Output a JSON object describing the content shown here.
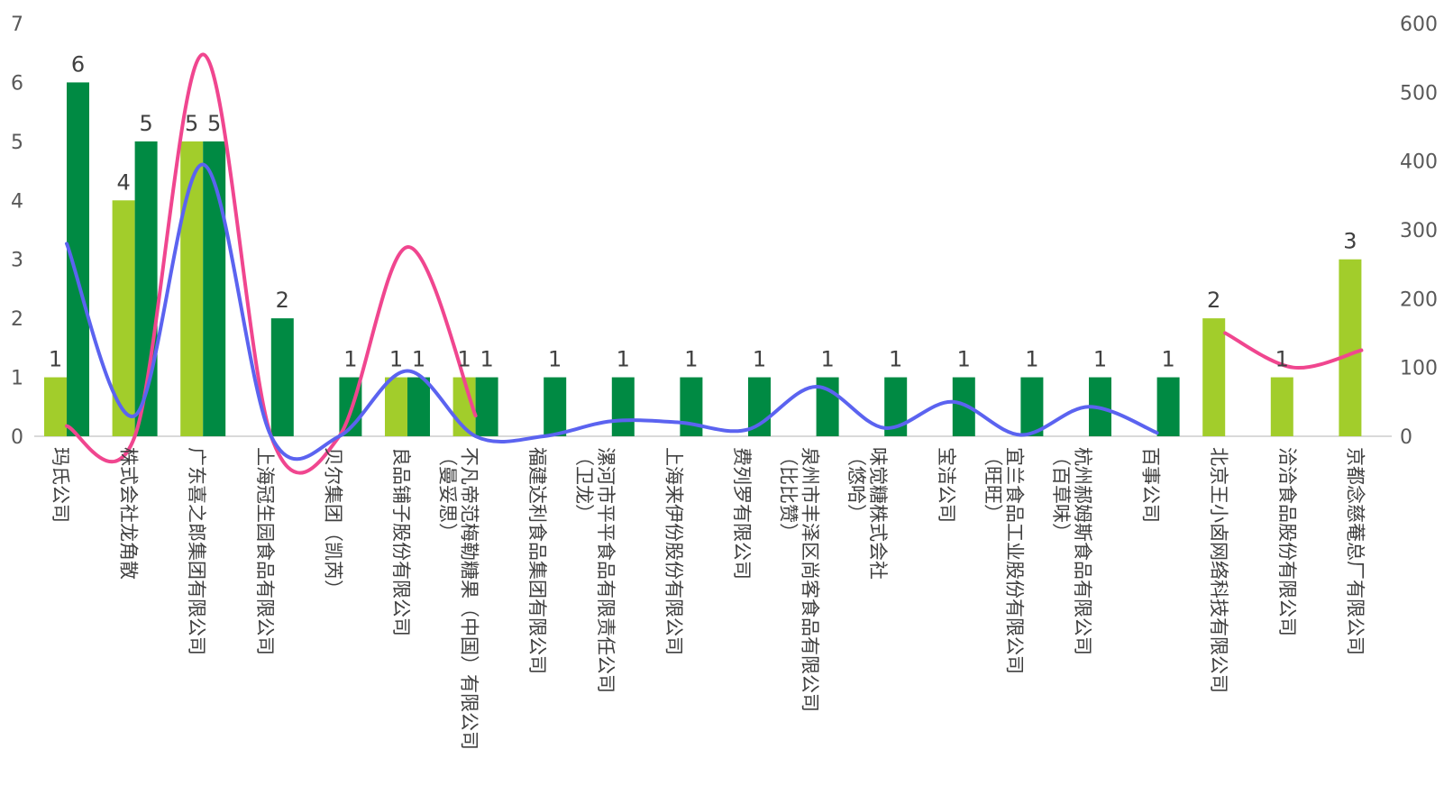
{
  "chart_data": {
    "type": "bar",
    "title": "",
    "xlabel": "",
    "ylabel": "",
    "ylim": [
      0,
      7
    ],
    "y2lim": [
      0,
      600
    ],
    "yticks": [
      "0",
      "1",
      "2",
      "3",
      "4",
      "5",
      "6",
      "7"
    ],
    "y2ticks": [
      "0",
      "100",
      "200",
      "300",
      "400",
      "500",
      "600"
    ],
    "grid": false,
    "legend": "none",
    "categories": [
      [
        "玛氏公司"
      ],
      [
        "株式会社龙角散"
      ],
      [
        "广东喜之郎集团有限公司"
      ],
      [
        "上海冠生园食品有限公司"
      ],
      [
        "贝尔集团（凯芮）"
      ],
      [
        "良品铺子股份有限公司"
      ],
      [
        "不凡帝范梅勒糖果（中国）有限公司",
        "（曼妥思）"
      ],
      [
        "福建达利食品集团有限公司"
      ],
      [
        "漯河市平平食品有限责任公司",
        "（卫龙）"
      ],
      [
        "上海来伊份股份有限公司"
      ],
      [
        "费列罗有限公司"
      ],
      [
        "泉州市丰泽区尚客食品有限公司",
        "（比比赞）"
      ],
      [
        "味觉糖株式会社",
        "（悠哈）"
      ],
      [
        "宝洁公司"
      ],
      [
        "宜兰食品工业股份有限公司",
        "（旺旺）"
      ],
      [
        "杭州郝姆斯食品有限公司",
        "（百草味）"
      ],
      [
        "百事公司"
      ],
      [
        "北京王小卤网络科技有限公司"
      ],
      [
        "洽洽食品股份有限公司"
      ],
      [
        "京都念慈菴总厂有限公司"
      ]
    ],
    "series": [
      {
        "kind": "bar",
        "axis": "left",
        "color": "#a2cd2b",
        "values": [
          1,
          4,
          5,
          null,
          null,
          1,
          1,
          null,
          null,
          null,
          null,
          null,
          null,
          null,
          null,
          null,
          null,
          2,
          1,
          3
        ]
      },
      {
        "kind": "bar",
        "axis": "left",
        "color": "#008a43",
        "values": [
          6,
          5,
          5,
          2,
          1,
          1,
          1,
          1,
          1,
          1,
          1,
          1,
          1,
          1,
          1,
          1,
          1,
          null,
          null,
          null
        ]
      },
      {
        "kind": "line",
        "axis": "right",
        "color": "#f0468f",
        "values": [
          15,
          0,
          555,
          0,
          0,
          275,
          30,
          null,
          null,
          null,
          null,
          null,
          null,
          null,
          null,
          null,
          null,
          150,
          100,
          125
        ]
      },
      {
        "kind": "line",
        "axis": "right",
        "color": "#5b63f0",
        "values": [
          280,
          30,
          395,
          0,
          0,
          95,
          0,
          0,
          22,
          20,
          10,
          72,
          12,
          50,
          2,
          43,
          5,
          null,
          null,
          null
        ]
      }
    ]
  }
}
